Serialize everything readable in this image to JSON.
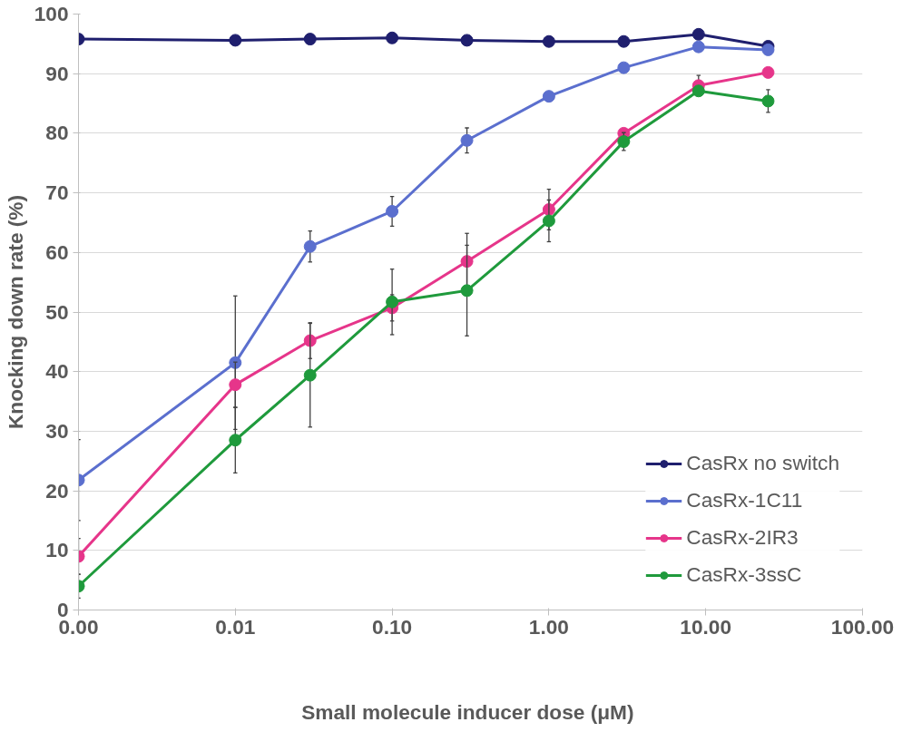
{
  "chart_data": {
    "type": "line",
    "xlabel": "Small molecule inducer dose  (μM)",
    "ylabel": "Knocking down rate (%)",
    "x": [
      0.001,
      0.01,
      0.03,
      0.1,
      0.3,
      1,
      3,
      9,
      25
    ],
    "log": "x",
    "xlim": [
      0.001,
      100
    ],
    "xticks": [
      {
        "value": 0.001,
        "label": "0.00"
      },
      {
        "value": 0.01,
        "label": "0.01"
      },
      {
        "value": 0.1,
        "label": "0.10"
      },
      {
        "value": 1,
        "label": "1.00"
      },
      {
        "value": 10,
        "label": "10.00"
      },
      {
        "value": 100,
        "label": "100.00"
      }
    ],
    "ylim": [
      0,
      100
    ],
    "yticks": [
      0,
      10,
      20,
      30,
      40,
      50,
      60,
      70,
      80,
      90,
      100
    ],
    "grid": "y",
    "legend": "bottom right",
    "marker": "circle",
    "line_style": "solid",
    "series": [
      {
        "name": "CasRx no switch",
        "color": "#1f1f6e",
        "values": [
          95.8,
          95.6,
          95.8,
          96.0,
          95.6,
          95.4,
          95.4,
          96.6,
          94.6
        ]
      },
      {
        "name": "CasRx-1C11",
        "color": "#5b6fce",
        "values": [
          21.8,
          41.5,
          61.0,
          66.9,
          78.8,
          86.2,
          91.0,
          94.5,
          94.0
        ],
        "errors": [
          6.8,
          11.2,
          2.6,
          2.5,
          2.1,
          null,
          null,
          null,
          null
        ]
      },
      {
        "name": "CasRx-2IR3",
        "color": "#e6358a",
        "values": [
          9.0,
          37.8,
          45.2,
          50.7,
          58.5,
          67.2,
          80.0,
          88.0,
          90.2
        ],
        "errors": [
          3.0,
          3.8,
          3.0,
          2.2,
          4.7,
          3.4,
          null,
          1.7,
          null
        ]
      },
      {
        "name": "CasRx-3ssC",
        "color": "#1f9a3c",
        "values": [
          4.0,
          28.5,
          39.4,
          51.7,
          53.6,
          65.3,
          78.6,
          87.1,
          85.4
        ],
        "errors": [
          2.0,
          5.5,
          8.7,
          5.5,
          7.6,
          3.5,
          1.5,
          null,
          1.9
        ]
      }
    ]
  }
}
